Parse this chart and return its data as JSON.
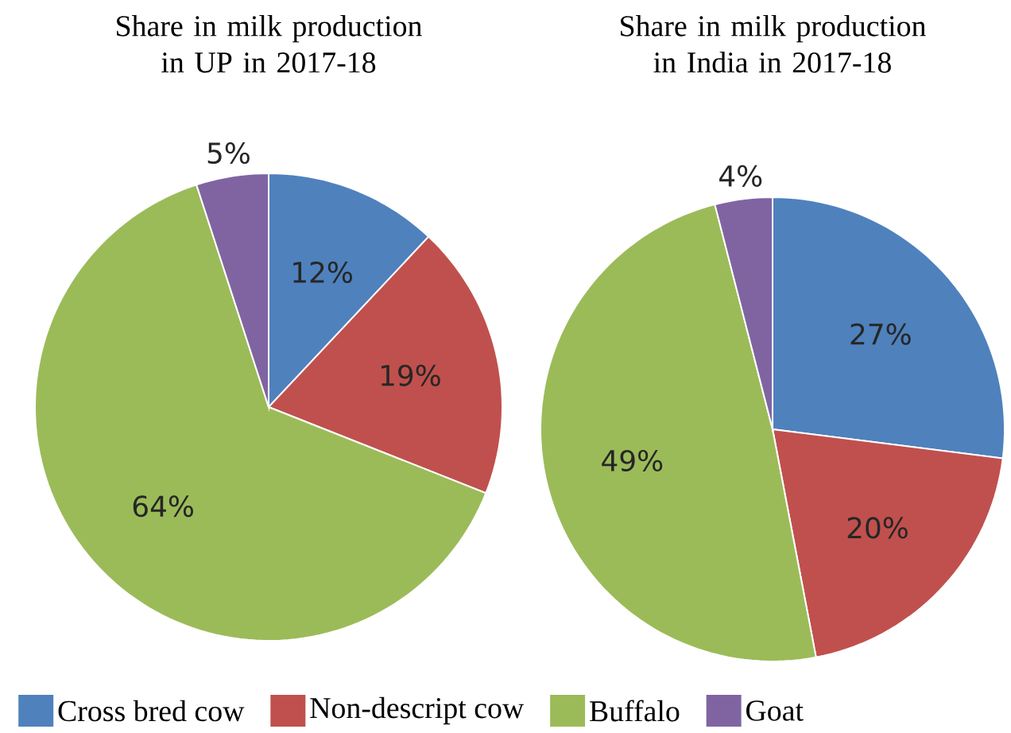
{
  "chart_data": [
    {
      "type": "pie",
      "title": "Share in milk production in UP in 2017-18",
      "categories": [
        "Cross bred cow",
        "Non-descript cow",
        "Buffalo",
        "Goat"
      ],
      "values": [
        12,
        19,
        64,
        5
      ],
      "value_labels": [
        "12%",
        "19%",
        "64%",
        "5%"
      ],
      "colors": [
        "#4f81bd",
        "#c0504d",
        "#9bbb59",
        "#8064a2"
      ],
      "legend": "bottom"
    },
    {
      "type": "pie",
      "title": "Share in milk production in India in 2017-18",
      "categories": [
        null,
        null,
        null,
        null
      ],
      "values": [
        27,
        20,
        49,
        4
      ],
      "value_labels": [
        "27%",
        "20%",
        "49%",
        "4%"
      ],
      "colors": [
        "#4f81bd",
        "#c0504d",
        "#9bbb59",
        "#8064a2"
      ]
    }
  ]
}
